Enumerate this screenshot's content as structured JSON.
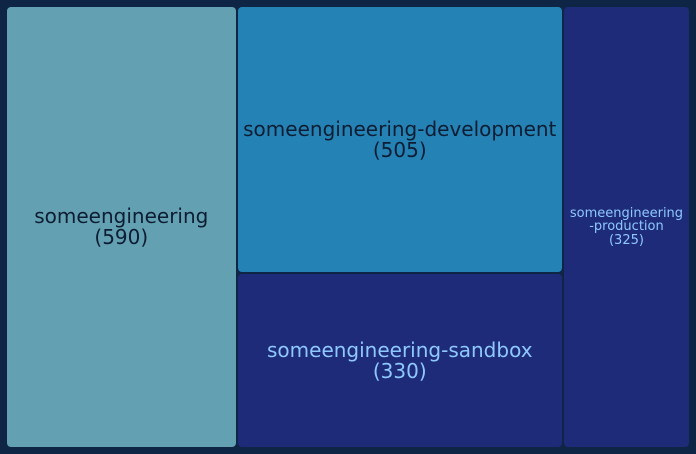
{
  "chart_data": {
    "type": "treemap",
    "items": [
      {
        "name": "someengineering",
        "value": 590,
        "label_lines": [
          "someengineering"
        ],
        "value_label": "(590)",
        "color": "#63a1b2",
        "text_color": "#0d1d33"
      },
      {
        "name": "someengineering-development",
        "value": 505,
        "label_lines": [
          "someengineering-development"
        ],
        "value_label": "(505)",
        "color": "#2582b5",
        "text_color": "#0d1d33"
      },
      {
        "name": "someengineering-sandbox",
        "value": 330,
        "label_lines": [
          "someengineering-sandbox"
        ],
        "value_label": "(330)",
        "color": "#1e2b78",
        "text_color": "#8ec8ff"
      },
      {
        "name": "someengineering-production",
        "value": 325,
        "label_lines": [
          "someengineering",
          "-production"
        ],
        "value_label": "(325)",
        "color": "#1e2b78",
        "text_color": "#8ec8ff"
      }
    ]
  }
}
